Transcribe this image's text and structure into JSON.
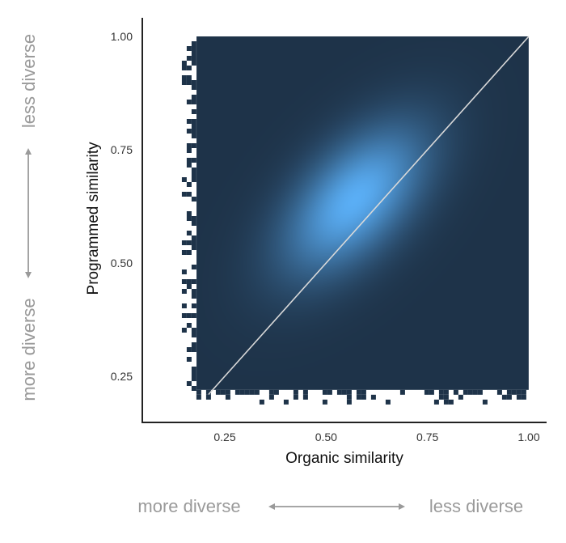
{
  "chart_data": {
    "type": "heatmap",
    "title": "",
    "xlabel": "Organic similarity",
    "ylabel": "Programmed similarity",
    "xlim": [
      0.1,
      1.0
    ],
    "ylim": [
      0.17,
      1.0
    ],
    "xticks": [
      0.25,
      0.5,
      0.75,
      1.0
    ],
    "xtick_labels": [
      "0.25",
      "0.50",
      "0.75",
      "1.00"
    ],
    "yticks": [
      0.25,
      0.5,
      0.75,
      1.0
    ],
    "ytick_labels": [
      "0.25",
      "0.50",
      "0.75",
      "1.00"
    ],
    "grid": false,
    "legend": "none",
    "density": {
      "peak": [
        0.57,
        0.64
      ],
      "spread": [
        0.14,
        0.13
      ],
      "correlation": 0.55,
      "filled_region": {
        "x_from": 0.18,
        "y_from": 0.22,
        "x_to": 1.0,
        "y_to": 1.0
      }
    },
    "reference_line": {
      "from": [
        0.21,
        0.21
      ],
      "to": [
        1.0,
        1.0
      ],
      "color": "#d9d9d9"
    },
    "colors": {
      "background": "#1e3349",
      "peak": "#5aaef5",
      "reference_line": "#d9d9d9"
    }
  },
  "annotations": {
    "x_left": "more diverse",
    "x_right": "less diverse",
    "y_top": "less diverse",
    "y_bottom": "more diverse",
    "arrow_color": "#9a9a9a"
  }
}
